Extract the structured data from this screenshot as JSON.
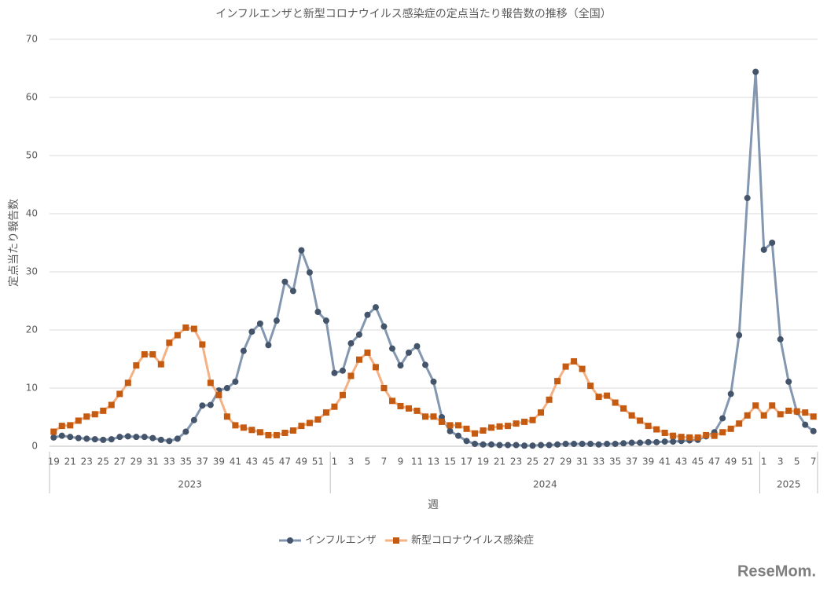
{
  "chart_data": {
    "type": "line",
    "title": "インフルエンザと新型コロナウイルス感染症の定点当たり報告数の推移（全国）",
    "y_label": "定点当たり報告数",
    "x_label": "週",
    "watermark": "ReseMom.",
    "categories": [
      "19",
      null,
      "21",
      null,
      "23",
      null,
      "25",
      null,
      "27",
      null,
      "29",
      null,
      "31",
      null,
      "33",
      null,
      "35",
      null,
      "37",
      null,
      "39",
      null,
      "41",
      null,
      "43",
      null,
      "45",
      null,
      "47",
      null,
      "49",
      null,
      "51",
      null,
      "1",
      null,
      "3",
      null,
      "5",
      null,
      "7",
      null,
      "9",
      null,
      "11",
      null,
      "13",
      null,
      "15",
      null,
      "17",
      null,
      "19",
      null,
      "21",
      null,
      "23",
      null,
      "25",
      null,
      "27",
      null,
      "29",
      null,
      "31",
      null,
      "33",
      null,
      "35",
      null,
      "37",
      null,
      "39",
      null,
      "41",
      null,
      "43",
      null,
      "45",
      null,
      "47",
      null,
      "49",
      null,
      "51",
      null,
      "1",
      null,
      "3",
      null,
      "5",
      null,
      "7"
    ],
    "x_groups": [
      {
        "label": "2023",
        "size": 34
      },
      {
        "label": "2024",
        "size": 52
      },
      {
        "label": "2025",
        "size": 7
      }
    ],
    "ylim": [
      0,
      70
    ],
    "yticks": [
      0,
      10,
      20,
      30,
      40,
      50,
      60,
      70
    ],
    "grid": true,
    "legend": "bottom",
    "series": [
      {
        "name": "インフルエンザ",
        "color": "#8497b0",
        "marker_color": "#44546a",
        "marker": "circle",
        "values": [
          1.5,
          1.8,
          1.6,
          1.4,
          1.3,
          1.2,
          1.1,
          1.2,
          1.6,
          1.7,
          1.6,
          1.6,
          1.4,
          1.1,
          0.9,
          1.3,
          2.5,
          4.5,
          7.0,
          7.1,
          9.6,
          10.0,
          11.1,
          16.4,
          19.7,
          21.1,
          17.4,
          21.6,
          28.3,
          26.7,
          33.7,
          29.9,
          23.1,
          21.6,
          12.6,
          13.0,
          17.7,
          19.2,
          22.6,
          23.9,
          20.6,
          16.8,
          13.9,
          16.1,
          17.2,
          14.0,
          11.1,
          5.0,
          2.6,
          1.8,
          0.9,
          0.4,
          0.3,
          0.3,
          0.2,
          0.2,
          0.2,
          0.1,
          0.1,
          0.2,
          0.2,
          0.3,
          0.4,
          0.4,
          0.4,
          0.4,
          0.3,
          0.4,
          0.4,
          0.5,
          0.6,
          0.6,
          0.7,
          0.7,
          0.8,
          0.8,
          0.9,
          1.0,
          1.1,
          1.7,
          2.4,
          4.8,
          9.0,
          19.1,
          42.7,
          64.4,
          33.8,
          35.0,
          18.4,
          11.1,
          5.9,
          3.7,
          2.6
        ]
      },
      {
        "name": "新型コロナウイルス感染症",
        "color": "#f4b183",
        "marker_color": "#c55a11",
        "marker": "square",
        "values": [
          2.5,
          3.5,
          3.6,
          4.4,
          5.1,
          5.5,
          6.1,
          7.1,
          9.0,
          10.9,
          13.9,
          15.8,
          15.8,
          14.1,
          17.8,
          19.1,
          20.4,
          20.2,
          17.5,
          10.9,
          8.8,
          5.1,
          3.6,
          3.2,
          2.8,
          2.4,
          1.9,
          1.9,
          2.3,
          2.7,
          3.5,
          4.0,
          4.6,
          5.8,
          6.8,
          8.8,
          12.1,
          14.9,
          16.1,
          13.6,
          10.0,
          7.8,
          6.9,
          6.5,
          6.1,
          5.1,
          5.1,
          4.2,
          3.6,
          3.6,
          3.0,
          2.2,
          2.7,
          3.2,
          3.4,
          3.5,
          3.9,
          4.2,
          4.5,
          5.8,
          8.0,
          11.2,
          13.7,
          14.6,
          13.3,
          10.4,
          8.5,
          8.7,
          7.5,
          6.5,
          5.3,
          4.4,
          3.5,
          2.9,
          2.3,
          1.8,
          1.6,
          1.5,
          1.5,
          1.9,
          1.8,
          2.4,
          3.0,
          3.9,
          5.3,
          7.0,
          5.3,
          7.0,
          5.5,
          6.1,
          6.0,
          5.8,
          5.1
        ]
      }
    ]
  }
}
